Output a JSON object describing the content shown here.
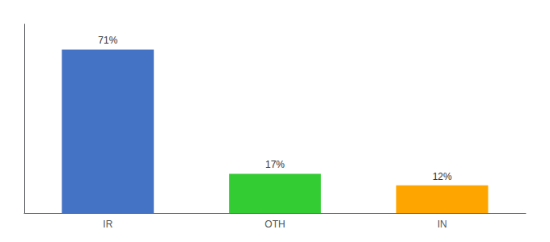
{
  "chart_data": {
    "type": "bar",
    "categories": [
      "IR",
      "OTH",
      "IN"
    ],
    "values": [
      71,
      17,
      12
    ],
    "value_labels": [
      "71%",
      "17%",
      "12%"
    ],
    "colors": [
      "#4472C4",
      "#33CC33",
      "#FFA500"
    ],
    "ylim": [
      0,
      82
    ],
    "grid": false,
    "tick_labels": "x",
    "data_labels": true
  }
}
